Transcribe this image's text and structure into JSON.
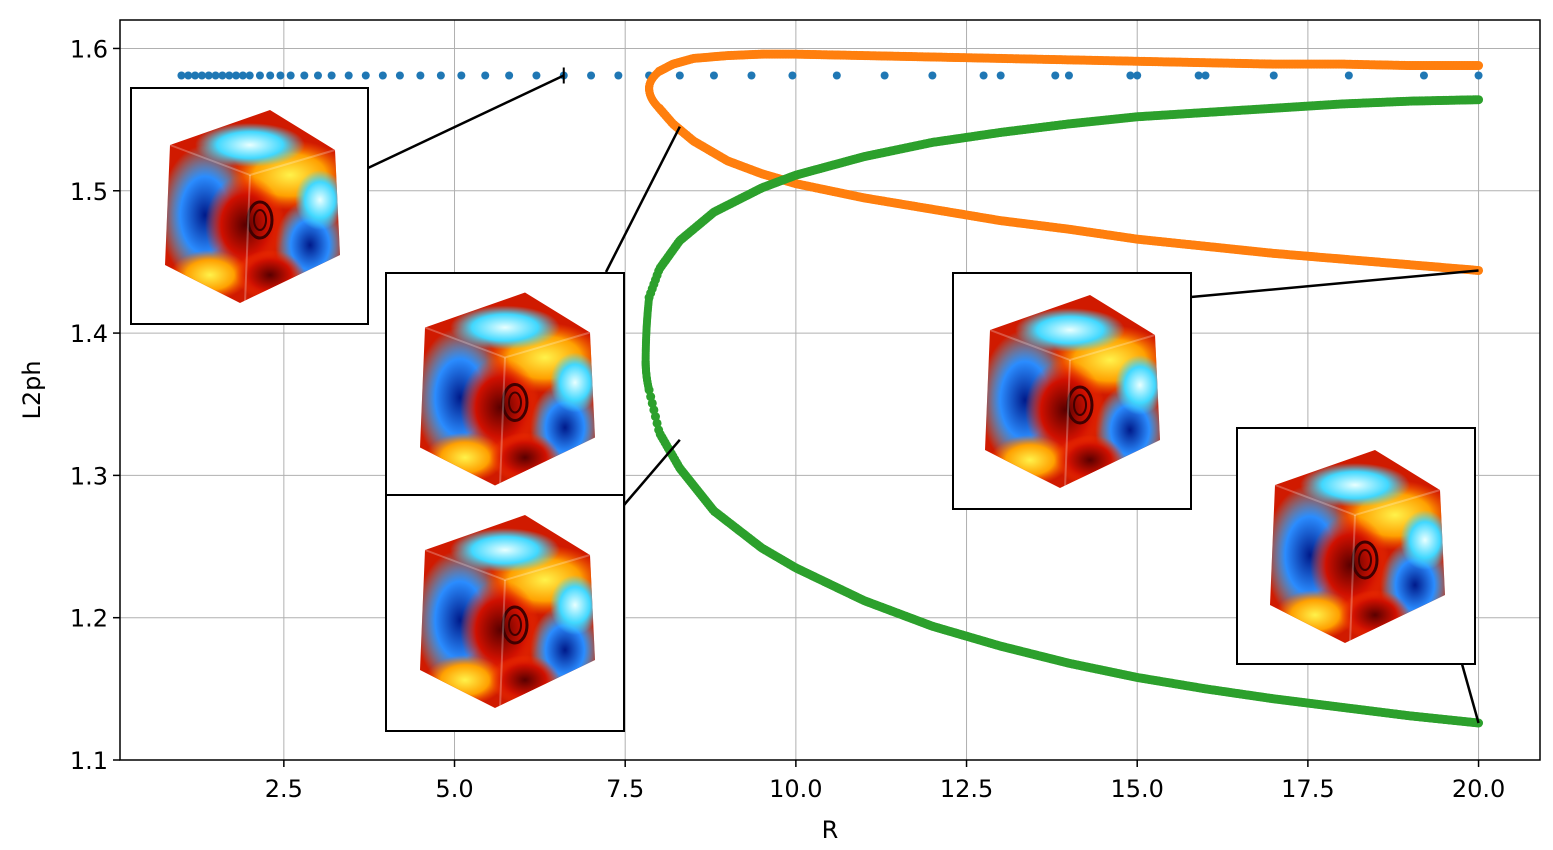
{
  "chart_data": {
    "type": "scatter",
    "xlabel": "R",
    "ylabel": "L2ph",
    "xlim": [
      0.1,
      20.9
    ],
    "ylim": [
      1.1,
      1.62
    ],
    "grid": true,
    "x_ticks": [
      2.5,
      5.0,
      7.5,
      10.0,
      12.5,
      15.0,
      17.5,
      20.0
    ],
    "x_tick_labels": [
      "2.5",
      "5.0",
      "7.5",
      "10.0",
      "12.5",
      "15.0",
      "17.5",
      "20.0"
    ],
    "y_ticks": [
      1.1,
      1.2,
      1.3,
      1.4,
      1.5,
      1.6
    ],
    "y_tick_labels": [
      "1.1",
      "1.2",
      "1.3",
      "1.4",
      "1.5",
      "1.6"
    ],
    "series": [
      {
        "color": "#1f77b4",
        "marker": "dot",
        "x": [
          1.0,
          1.1,
          1.2,
          1.3,
          1.4,
          1.5,
          1.6,
          1.7,
          1.8,
          1.9,
          2.0,
          2.15,
          2.3,
          2.45,
          2.6,
          2.8,
          3.0,
          3.2,
          3.45,
          3.7,
          3.95,
          4.2,
          4.5,
          4.8,
          5.1,
          5.45,
          5.8,
          6.2,
          6.6,
          7.0,
          7.4,
          7.85,
          8.3,
          8.8,
          9.35,
          9.95,
          10.6,
          11.3,
          12.0,
          12.75,
          13.0,
          13.8,
          14.0,
          14.9,
          15.0,
          15.9,
          16.0,
          17.0,
          18.1,
          19.2,
          20.0
        ],
        "y": [
          1.581,
          1.581,
          1.581,
          1.581,
          1.581,
          1.581,
          1.581,
          1.581,
          1.581,
          1.581,
          1.581,
          1.581,
          1.581,
          1.581,
          1.581,
          1.581,
          1.581,
          1.581,
          1.581,
          1.581,
          1.581,
          1.581,
          1.581,
          1.581,
          1.581,
          1.581,
          1.581,
          1.581,
          1.581,
          1.581,
          1.581,
          1.581,
          1.581,
          1.581,
          1.581,
          1.581,
          1.581,
          1.581,
          1.581,
          1.581,
          1.581,
          1.581,
          1.581,
          1.581,
          1.581,
          1.581,
          1.581,
          1.581,
          1.581,
          1.581,
          1.581
        ]
      },
      {
        "color": "#ff7f0e",
        "marker": "dense-dot",
        "fold_x": 7.85,
        "fold_y": 1.572,
        "upper_branch": {
          "x": [
            7.85,
            8.0,
            8.2,
            8.5,
            9.0,
            9.5,
            10.0,
            11.0,
            12.0,
            13.0,
            14.0,
            15.0,
            16.0,
            17.0,
            18.0,
            19.0,
            20.0
          ],
          "y": [
            1.572,
            1.584,
            1.589,
            1.593,
            1.595,
            1.596,
            1.596,
            1.595,
            1.594,
            1.593,
            1.592,
            1.591,
            1.59,
            1.589,
            1.589,
            1.588,
            1.588
          ]
        },
        "lower_branch": {
          "x": [
            7.85,
            8.0,
            8.2,
            8.5,
            9.0,
            9.5,
            10.0,
            11.0,
            12.0,
            13.0,
            14.0,
            15.0,
            16.0,
            17.0,
            18.0,
            19.0,
            20.0
          ],
          "y": [
            1.572,
            1.558,
            1.547,
            1.535,
            1.521,
            1.512,
            1.505,
            1.495,
            1.487,
            1.479,
            1.473,
            1.466,
            1.461,
            1.456,
            1.452,
            1.448,
            1.444
          ]
        }
      },
      {
        "color": "#2ca02c",
        "marker": "dense-dot",
        "fold_x": 7.8,
        "fold_y": 1.38,
        "upper_branch": {
          "x": [
            7.8,
            7.85,
            8.0,
            8.3,
            8.8,
            9.5,
            10.0,
            11.0,
            12.0,
            13.0,
            14.0,
            15.0,
            16.0,
            17.0,
            18.0,
            19.0,
            20.0
          ],
          "y": [
            1.38,
            1.425,
            1.445,
            1.465,
            1.485,
            1.502,
            1.511,
            1.524,
            1.534,
            1.541,
            1.547,
            1.552,
            1.555,
            1.558,
            1.561,
            1.563,
            1.564
          ]
        },
        "lower_branch": {
          "x": [
            7.8,
            7.85,
            8.0,
            8.3,
            8.8,
            9.5,
            10.0,
            11.0,
            12.0,
            13.0,
            14.0,
            15.0,
            16.0,
            17.0,
            18.0,
            19.0,
            20.0
          ],
          "y": [
            1.38,
            1.36,
            1.33,
            1.305,
            1.275,
            1.249,
            1.235,
            1.212,
            1.194,
            1.18,
            1.168,
            1.158,
            1.15,
            1.143,
            1.137,
            1.131,
            1.126
          ]
        }
      }
    ],
    "insets": [
      {
        "id": "inset-top-left",
        "points_to": [
          6.6,
          1.581
        ]
      },
      {
        "id": "inset-middle-upper",
        "points_to": [
          8.3,
          1.545
        ]
      },
      {
        "id": "inset-middle-lower",
        "points_to": [
          8.3,
          1.325
        ]
      },
      {
        "id": "inset-right-middle",
        "points_to": [
          20.0,
          1.444
        ]
      },
      {
        "id": "inset-right-bottom",
        "points_to": [
          20.0,
          1.126
        ]
      }
    ]
  }
}
